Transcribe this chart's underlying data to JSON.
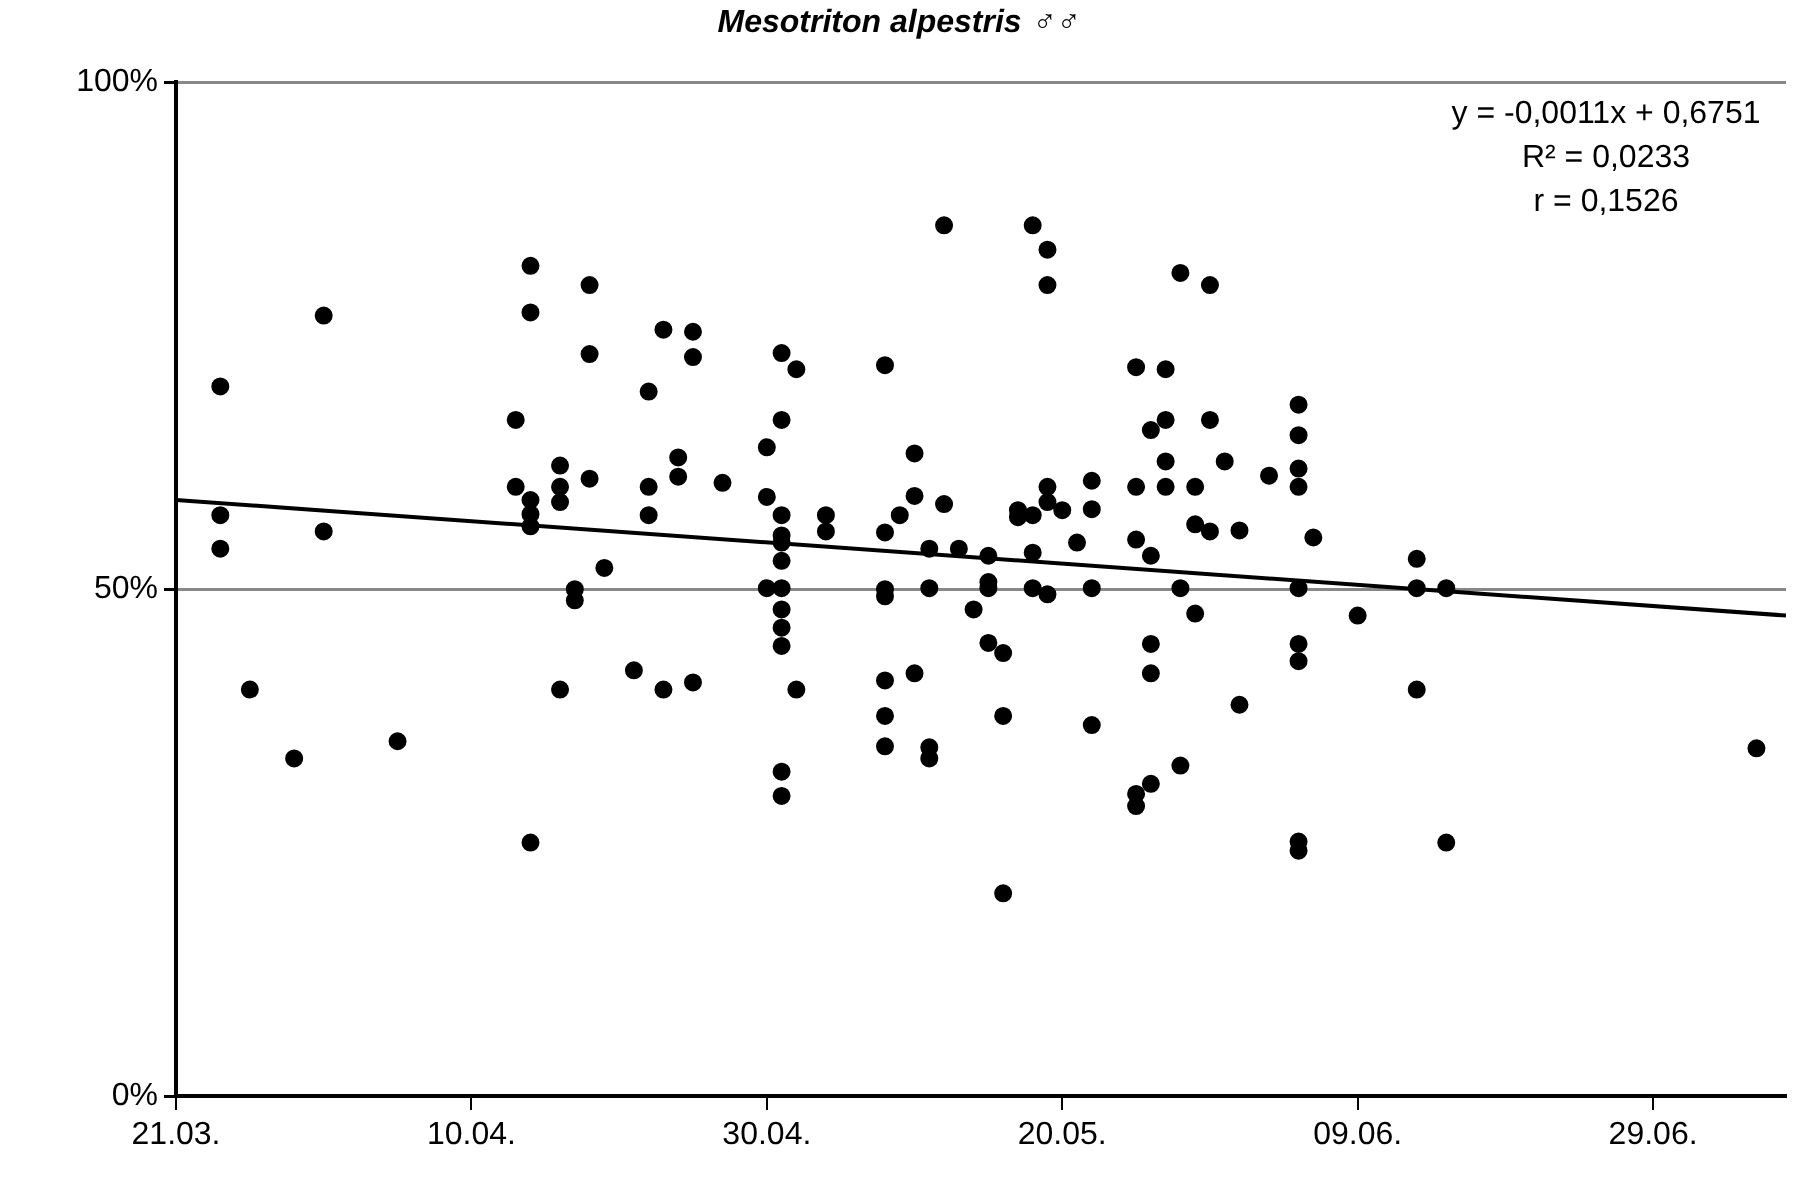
{
  "chart_data": {
    "type": "scatter",
    "title": "Mesotriton alpestris ♂♂",
    "annotations": [
      "y = -0,0011x + 0,6751",
      "R² = 0,0233",
      "r = 0,1526"
    ],
    "xlim": [
      "--03-21",
      "--07-08"
    ],
    "xticks": [
      {
        "value": "--03-21",
        "label": "21.03."
      },
      {
        "value": "--04-10",
        "label": "10.04."
      },
      {
        "value": "--04-30",
        "label": "30.04."
      },
      {
        "value": "--05-20",
        "label": "20.05."
      },
      {
        "value": "--06-09",
        "label": "09.06."
      },
      {
        "value": "--06-29",
        "label": "29.06."
      }
    ],
    "ylim": [
      0,
      100
    ],
    "yticks": [
      {
        "value": 0,
        "label": "0%"
      },
      {
        "value": 50,
        "label": "50%"
      },
      {
        "value": 100,
        "label": "100%"
      }
    ],
    "grid": "y",
    "legend": false,
    "series": [
      {
        "type": "scatter",
        "color": "#000000",
        "marker": "circle",
        "x": [
          "--03-24",
          "--03-24",
          "--03-24",
          "--03-26",
          "--03-29",
          "--03-31",
          "--03-31",
          "--04-05",
          "--04-13",
          "--04-13",
          "--04-14",
          "--04-14",
          "--04-14",
          "--04-14",
          "--04-14",
          "--04-14",
          "--04-16",
          "--04-16",
          "--04-16",
          "--04-16",
          "--04-17",
          "--04-17",
          "--04-18",
          "--04-18",
          "--04-18",
          "--04-19",
          "--04-21",
          "--04-22",
          "--04-22",
          "--04-22",
          "--04-23",
          "--04-23",
          "--04-24",
          "--04-24",
          "--04-25",
          "--04-25",
          "--04-25",
          "--04-27",
          "--04-30",
          "--04-30",
          "--04-30",
          "--05-01",
          "--05-01",
          "--05-01",
          "--05-01",
          "--05-01",
          "--05-01",
          "--05-01",
          "--05-01",
          "--05-01",
          "--05-01",
          "--05-01",
          "--05-01",
          "--05-02",
          "--05-02",
          "--05-04",
          "--05-04",
          "--05-08",
          "--05-08",
          "--05-08",
          "--05-08",
          "--05-08",
          "--05-08",
          "--05-08",
          "--05-09",
          "--05-10",
          "--05-10",
          "--05-10",
          "--05-11",
          "--05-11",
          "--05-11",
          "--05-11",
          "--05-12",
          "--05-12",
          "--05-13",
          "--05-14",
          "--05-15",
          "--05-15",
          "--05-15",
          "--05-15",
          "--05-16",
          "--05-16",
          "--05-16",
          "--05-17",
          "--05-17",
          "--05-18",
          "--05-18",
          "--05-18",
          "--05-18",
          "--05-19",
          "--05-19",
          "--05-19",
          "--05-19",
          "--05-19",
          "--05-20",
          "--05-21",
          "--05-22",
          "--05-22",
          "--05-22",
          "--05-22",
          "--05-25",
          "--05-25",
          "--05-25",
          "--05-25",
          "--05-25",
          "--05-26",
          "--05-26",
          "--05-26",
          "--05-26",
          "--05-26",
          "--05-27",
          "--05-27",
          "--05-27",
          "--05-27",
          "--05-28",
          "--05-28",
          "--05-28",
          "--05-29",
          "--05-29",
          "--05-29",
          "--05-30",
          "--05-30",
          "--05-30",
          "--05-31",
          "--06-01",
          "--06-01",
          "--06-03",
          "--06-05",
          "--06-05",
          "--06-05",
          "--06-05",
          "--06-05",
          "--06-05",
          "--06-05",
          "--06-05",
          "--06-05",
          "--06-06",
          "--06-09",
          "--06-13",
          "--06-13",
          "--06-13",
          "--06-15",
          "--06-15",
          "--07-06"
        ],
        "values": [
          70.0,
          57.3,
          54.0,
          40.1,
          33.3,
          77.0,
          55.7,
          35.0,
          66.7,
          60.1,
          81.9,
          77.3,
          58.8,
          57.4,
          56.2,
          25.0,
          62.2,
          60.1,
          58.6,
          40.1,
          50.0,
          48.9,
          80.0,
          73.2,
          60.9,
          52.1,
          42.0,
          69.5,
          60.1,
          57.3,
          75.6,
          40.1,
          63.0,
          61.1,
          75.4,
          72.9,
          40.8,
          60.5,
          64.0,
          59.1,
          50.1,
          73.3,
          66.7,
          57.3,
          55.3,
          54.6,
          52.8,
          50.1,
          48.0,
          46.2,
          44.4,
          32.0,
          29.6,
          71.7,
          40.1,
          57.3,
          55.7,
          72.1,
          55.6,
          50.0,
          49.3,
          41.0,
          37.5,
          34.5,
          57.3,
          63.4,
          59.2,
          41.7,
          54.0,
          50.1,
          34.4,
          33.3,
          85.9,
          58.4,
          54.0,
          48.0,
          53.3,
          50.7,
          50.1,
          44.7,
          43.7,
          37.5,
          20.0,
          57.8,
          57.1,
          85.9,
          57.3,
          53.6,
          50.1,
          83.5,
          80.0,
          60.1,
          58.6,
          49.5,
          57.8,
          54.6,
          60.7,
          57.9,
          50.1,
          36.6,
          71.9,
          60.1,
          54.9,
          29.8,
          28.6,
          65.7,
          53.3,
          44.6,
          41.7,
          30.8,
          71.7,
          66.7,
          62.6,
          60.1,
          81.2,
          50.1,
          32.6,
          60.1,
          56.4,
          47.6,
          80.0,
          66.7,
          55.7,
          62.6,
          55.8,
          38.6,
          61.2,
          68.2,
          65.2,
          61.9,
          60.1,
          50.1,
          44.6,
          42.9,
          25.1,
          24.2,
          55.1,
          47.4,
          53.0,
          50.1,
          40.1,
          50.1,
          25.0,
          34.3
        ]
      },
      {
        "type": "line",
        "color": "#000000",
        "marker": "none",
        "line_style": "solid",
        "x": [
          "--03-21",
          "--07-08"
        ],
        "values": [
          58.8,
          47.4
        ]
      }
    ]
  }
}
